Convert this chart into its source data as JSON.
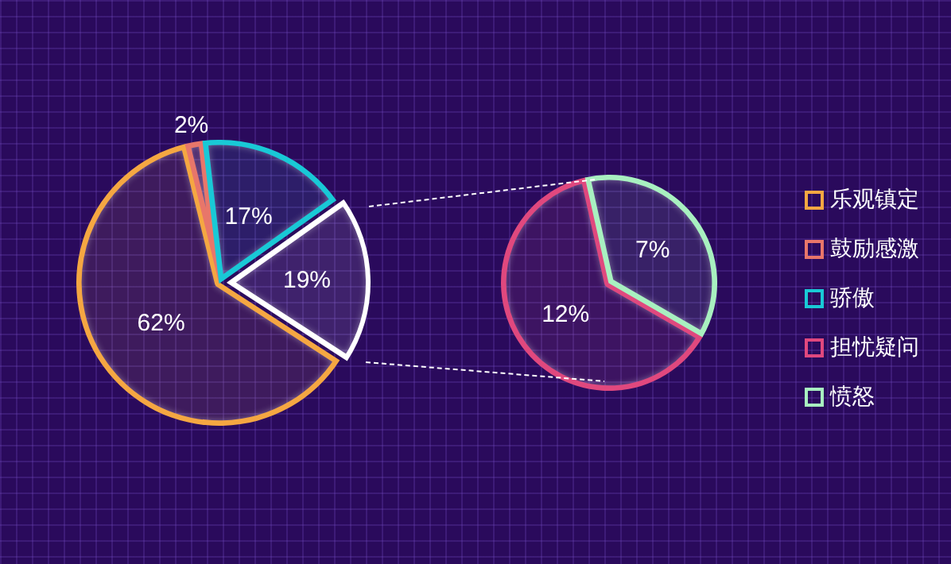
{
  "chart_data": [
    {
      "type": "pie",
      "categories": [
        "乐观镇定",
        "鼓励感激",
        "骄傲",
        null
      ],
      "values": [
        62,
        2,
        17,
        19
      ],
      "colors": [
        "#f5a742",
        "#e8766a",
        "#19c9d6",
        "#ffffff"
      ],
      "value_labels": [
        "62%",
        "2%",
        "17%",
        "19%"
      ],
      "legend": "right"
    },
    {
      "type": "pie",
      "categories": [
        "担忧疑问",
        "愤怒"
      ],
      "values": [
        12,
        7
      ],
      "colors": [
        "#e0487e",
        "#a8f0c0"
      ],
      "value_labels": [
        "12%",
        "7%"
      ],
      "legend": "right"
    }
  ]
}
